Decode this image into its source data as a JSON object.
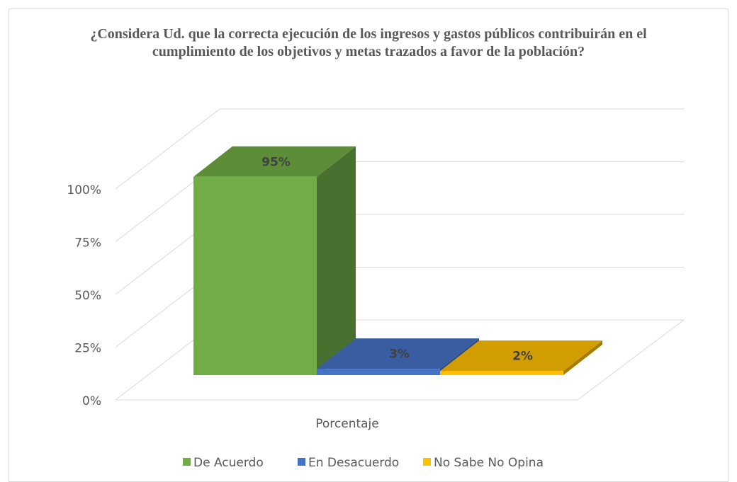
{
  "chart_data": {
    "type": "bar3d",
    "title": "¿Considera Ud. que la correcta ejecución de los ingresos y gastos públicos contribuirán en el cumplimiento de los objetivos y metas trazados a favor de la población?",
    "categories": [
      "Porcentaje"
    ],
    "series": [
      {
        "name": "De Acuerdo",
        "color": "#70ad47",
        "values": [
          95
        ],
        "value_labels": [
          "95%"
        ]
      },
      {
        "name": "En Desacuerdo",
        "color": "#4472c4",
        "values": [
          3
        ],
        "value_labels": [
          "3%"
        ]
      },
      {
        "name": "No Sabe No Opina",
        "color": "#ffc000",
        "values": [
          2
        ],
        "value_labels": [
          "2%"
        ]
      }
    ],
    "ylim": [
      0,
      100
    ],
    "yticks": [
      {
        "value": 0,
        "label": "0%"
      },
      {
        "value": 25,
        "label": "25%"
      },
      {
        "value": 50,
        "label": "50%"
      },
      {
        "value": 75,
        "label": "75%"
      },
      {
        "value": 100,
        "label": "100%"
      }
    ],
    "grid": true,
    "legend": "bottom"
  }
}
